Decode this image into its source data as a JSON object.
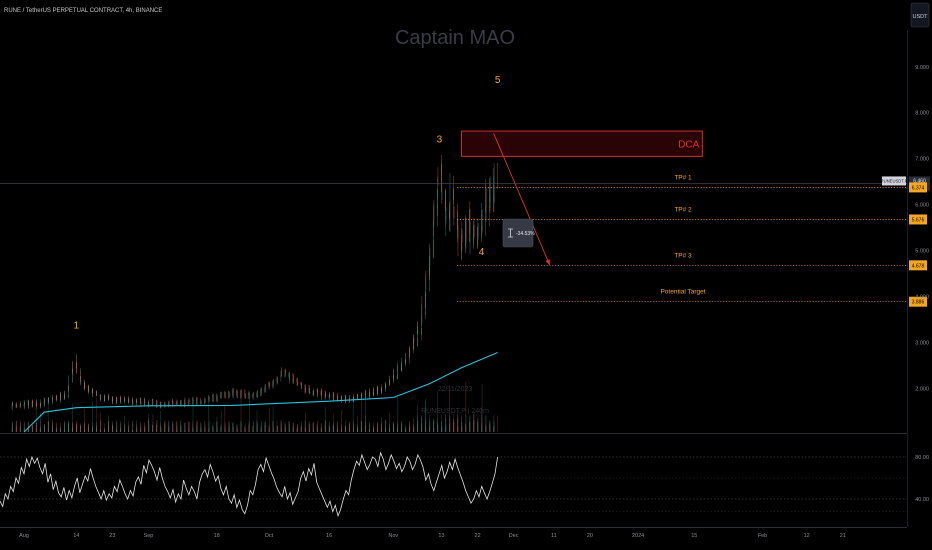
{
  "header": {
    "symbol_title": "RUNE / TetherUS PERPETUAL CONTRACT, 4h, BINANCE",
    "currency_button": "USDT"
  },
  "watermark": {
    "author": "Captain MAO",
    "date_line": "22/11/2023",
    "symbol_line": "RUNEUSDT.P | 240m"
  },
  "wave_labels": [
    {
      "label": "1",
      "date": "2023-08-14",
      "price": 3.3
    },
    {
      "label": "3",
      "date": "2023-11-13",
      "price": 7.35
    },
    {
      "label": "4",
      "date": "2023-11-23",
      "price": 4.9
    },
    {
      "label": "5",
      "date": "2023-11-27",
      "price": 8.65
    }
  ],
  "dca_zone": {
    "label": "DCA",
    "price_low": 7.05,
    "price_high": 7.6,
    "date_from": "2023-11-18",
    "date_to": "2024-01-17"
  },
  "projection_arrow": {
    "from_date": "2023-11-26",
    "from_price": 7.55,
    "to_date": "2023-12-10",
    "to_price": 4.68,
    "measure_label": "-34.53%"
  },
  "levels": [
    {
      "label": "TP# 1",
      "price": 6.374,
      "tag": "6.374"
    },
    {
      "label": "TP# 2",
      "price": 5.676,
      "tag": "5.676"
    },
    {
      "label": "TP# 3",
      "price": 4.678,
      "tag": "4.678"
    },
    {
      "label": "Potential Target",
      "price": 3.886,
      "tag": "3.886"
    }
  ],
  "last_price": {
    "value": 6.46,
    "tag_symbol": "RUNEUSDT.P",
    "tag_value": "6.460",
    "tag_time": "02:11:37"
  },
  "chart_data": {
    "type": "candlestick",
    "price_axis": {
      "ticks": [
        "9.000",
        "8.000",
        "7.000",
        "6.000",
        "5.000",
        "4.000",
        "3.000",
        "2.000"
      ],
      "range": [
        1.05,
        9.8
      ]
    },
    "time_axis": {
      "ticks": [
        "Aug",
        "14",
        "23",
        "Sep",
        "18",
        "Oct",
        "16",
        "Nov",
        "13",
        "22",
        "Dec",
        "11",
        "20",
        "2024",
        "15",
        "Feb",
        "12",
        "21"
      ],
      "range": [
        "2023-07-26",
        "2024-03-08"
      ]
    },
    "price_series": [
      {
        "date": "2023-07-29",
        "price": 1.62
      },
      {
        "date": "2023-08-06",
        "price": 1.68
      },
      {
        "date": "2023-08-12",
        "price": 1.85
      },
      {
        "date": "2023-08-14",
        "price": 2.6
      },
      {
        "date": "2023-08-16",
        "price": 2.05
      },
      {
        "date": "2023-08-20",
        "price": 1.8
      },
      {
        "date": "2023-08-28",
        "price": 1.72
      },
      {
        "date": "2023-09-05",
        "price": 1.65
      },
      {
        "date": "2023-09-15",
        "price": 1.72
      },
      {
        "date": "2023-09-22",
        "price": 1.9
      },
      {
        "date": "2023-09-28",
        "price": 1.85
      },
      {
        "date": "2023-10-02",
        "price": 2.1
      },
      {
        "date": "2023-10-05",
        "price": 2.35
      },
      {
        "date": "2023-10-10",
        "price": 2.0
      },
      {
        "date": "2023-10-16",
        "price": 1.82
      },
      {
        "date": "2023-10-22",
        "price": 1.78
      },
      {
        "date": "2023-10-30",
        "price": 1.98
      },
      {
        "date": "2023-11-04",
        "price": 2.55
      },
      {
        "date": "2023-11-08",
        "price": 3.3
      },
      {
        "date": "2023-11-10",
        "price": 4.4
      },
      {
        "date": "2023-11-11",
        "price": 5.4
      },
      {
        "date": "2023-11-12",
        "price": 6.0
      },
      {
        "date": "2023-11-13",
        "price": 6.75
      },
      {
        "date": "2023-11-15",
        "price": 5.5
      },
      {
        "date": "2023-11-16",
        "price": 6.3
      },
      {
        "date": "2023-11-18",
        "price": 5.0
      },
      {
        "date": "2023-11-20",
        "price": 5.6
      },
      {
        "date": "2023-11-22",
        "price": 5.2
      },
      {
        "date": "2023-11-24",
        "price": 5.9
      },
      {
        "date": "2023-11-26",
        "price": 6.2
      },
      {
        "date": "2023-11-27",
        "price": 6.46
      }
    ],
    "moving_average": [
      {
        "date": "2023-08-01",
        "price": 1.05
      },
      {
        "date": "2023-08-06",
        "price": 1.48
      },
      {
        "date": "2023-08-14",
        "price": 1.58
      },
      {
        "date": "2023-09-01",
        "price": 1.62
      },
      {
        "date": "2023-09-22",
        "price": 1.63
      },
      {
        "date": "2023-10-16",
        "price": 1.72
      },
      {
        "date": "2023-11-01",
        "price": 1.8
      },
      {
        "date": "2023-11-10",
        "price": 2.1
      },
      {
        "date": "2023-11-18",
        "price": 2.45
      },
      {
        "date": "2023-11-27",
        "price": 2.78
      }
    ],
    "oscillator": {
      "levels": [
        "80.00",
        "40.00"
      ],
      "range": [
        20,
        100
      ],
      "values": [
        38,
        33,
        45,
        40,
        52,
        47,
        60,
        55,
        70,
        64,
        78,
        71,
        80,
        74,
        79,
        70,
        64,
        74,
        56,
        64,
        49,
        57,
        46,
        42,
        51,
        39,
        48,
        41,
        52,
        60,
        46,
        54,
        62,
        57,
        69,
        60,
        52,
        46,
        40,
        48,
        39,
        45,
        41,
        52,
        47,
        58,
        52,
        45,
        40,
        48,
        43,
        56,
        61,
        54,
        72,
        65,
        77,
        72,
        66,
        58,
        70,
        60,
        52,
        47,
        41,
        49,
        37,
        45,
        40,
        58,
        50,
        44,
        52,
        47,
        40,
        56,
        64,
        68,
        61,
        73,
        66,
        57,
        62,
        50,
        44,
        52,
        40,
        36,
        44,
        32,
        39,
        30,
        26,
        34,
        48,
        44,
        54,
        68,
        73,
        66,
        79,
        72,
        65,
        59,
        51,
        46,
        42,
        52,
        40,
        46,
        35,
        41,
        47,
        60,
        66,
        57,
        69,
        63,
        74,
        56,
        50,
        44,
        38,
        32,
        38,
        28,
        34,
        24,
        30,
        40,
        48,
        44,
        58,
        68,
        76,
        72,
        82,
        75,
        68,
        73,
        80,
        78,
        71,
        84,
        78,
        68,
        74,
        82,
        76,
        69,
        74,
        66,
        71,
        80,
        76,
        68,
        73,
        82,
        77,
        70,
        58,
        64,
        54,
        48,
        56,
        64,
        72,
        60,
        66,
        75,
        68,
        78,
        70,
        63,
        56,
        48,
        42,
        36,
        40,
        48,
        42,
        52,
        46,
        40,
        47,
        55,
        64,
        80
      ]
    }
  }
}
